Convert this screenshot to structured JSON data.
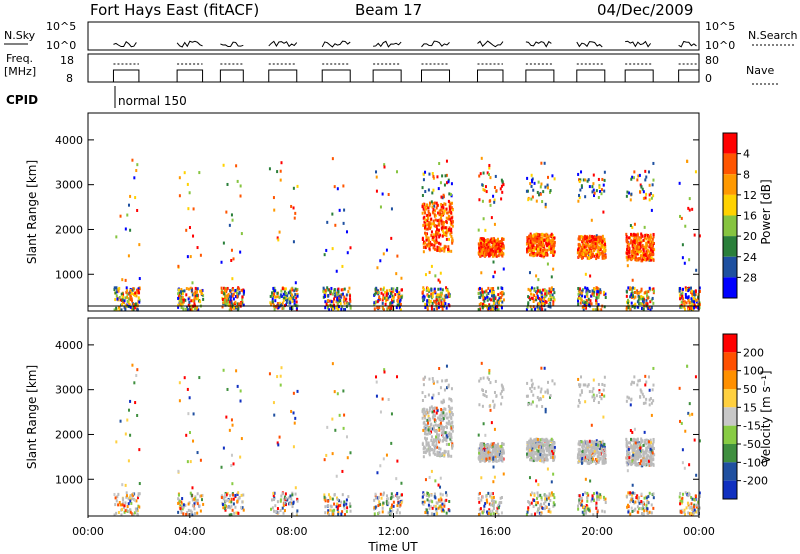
{
  "header": {
    "title": "Fort Hays East (fitACF)",
    "beam": "Beam 17",
    "date": "04/Dec/2009"
  },
  "strips": {
    "nsky_label": "N.Sky",
    "nsky_ticks": [
      "10^5",
      "10^0"
    ],
    "nsearch_label": "N.Search",
    "nsearch_ticks": [
      "10^5",
      "10^0"
    ],
    "freq_label_1": "Freq.",
    "freq_label_2": "[MHz]",
    "freq_ticks": [
      "18",
      "8"
    ],
    "nave_label": "Nave",
    "nave_ticks": [
      "80",
      "0"
    ],
    "cpid_label": "CPID",
    "cpid_value": "normal 150"
  },
  "colors": {
    "power": [
      "#0000ff",
      "#1e50a0",
      "#2a7f3a",
      "#86c440",
      "#ffd200",
      "#ff9900",
      "#ff5500",
      "#ff0000"
    ],
    "velocity": [
      "#1030c0",
      "#2050a0",
      "#3f8f3f",
      "#88cc44",
      "#c8c8c8",
      "#ffd040",
      "#ff9000",
      "#ff5000",
      "#ff0000"
    ],
    "ground_scatter": "#bbbbbb"
  },
  "chart_data": [
    {
      "type": "heatmap",
      "name": "power",
      "ylabel": "Slant Range [km]",
      "ylim": [
        180,
        4600
      ],
      "y_ticks": [
        1000,
        2000,
        3000,
        4000
      ],
      "x_ticks": [
        "00:00",
        "04:00",
        "08:00",
        "12:00",
        "16:00",
        "20:00",
        "00:00"
      ],
      "colorbar_label": "Power [dB]",
      "colorbar_ticks": [
        4,
        8,
        12,
        16,
        20,
        24,
        28
      ],
      "scan_blocks_ut_hours": [
        [
          1.0,
          2.0
        ],
        [
          3.5,
          4.5
        ],
        [
          5.2,
          6.1
        ],
        [
          7.1,
          8.2
        ],
        [
          9.2,
          10.3
        ],
        [
          11.2,
          12.3
        ],
        [
          13.1,
          14.2
        ],
        [
          15.3,
          16.3
        ],
        [
          17.2,
          18.3
        ],
        [
          19.2,
          20.3
        ],
        [
          21.1,
          22.2
        ],
        [
          23.2,
          24.0
        ]
      ],
      "echo_bands": [
        {
          "ut_start": 13.1,
          "ut_end": 14.3,
          "range_km": [
            1500,
            2600
          ],
          "level": "high"
        },
        {
          "ut_start": 15.3,
          "ut_end": 16.3,
          "range_km": [
            1400,
            1800
          ],
          "level": "high"
        },
        {
          "ut_start": 17.2,
          "ut_end": 18.3,
          "range_km": [
            1400,
            1900
          ],
          "level": "high"
        },
        {
          "ut_start": 19.2,
          "ut_end": 20.3,
          "range_km": [
            1350,
            1850
          ],
          "level": "high"
        },
        {
          "ut_start": 21.1,
          "ut_end": 22.2,
          "range_km": [
            1300,
            1900
          ],
          "level": "high"
        }
      ]
    },
    {
      "type": "heatmap",
      "name": "velocity",
      "ylabel": "Slant Range [km]",
      "ylim": [
        180,
        4600
      ],
      "y_ticks": [
        1000,
        2000,
        3000,
        4000
      ],
      "x_ticks": [
        "00:00",
        "04:00",
        "08:00",
        "12:00",
        "16:00",
        "20:00",
        "00:00"
      ],
      "xlabel": "Time UT",
      "colorbar_label": "Velocity [m s⁻¹]",
      "colorbar_ticks": [
        200,
        100,
        50,
        15,
        -15,
        -50,
        -100,
        -200
      ]
    }
  ]
}
